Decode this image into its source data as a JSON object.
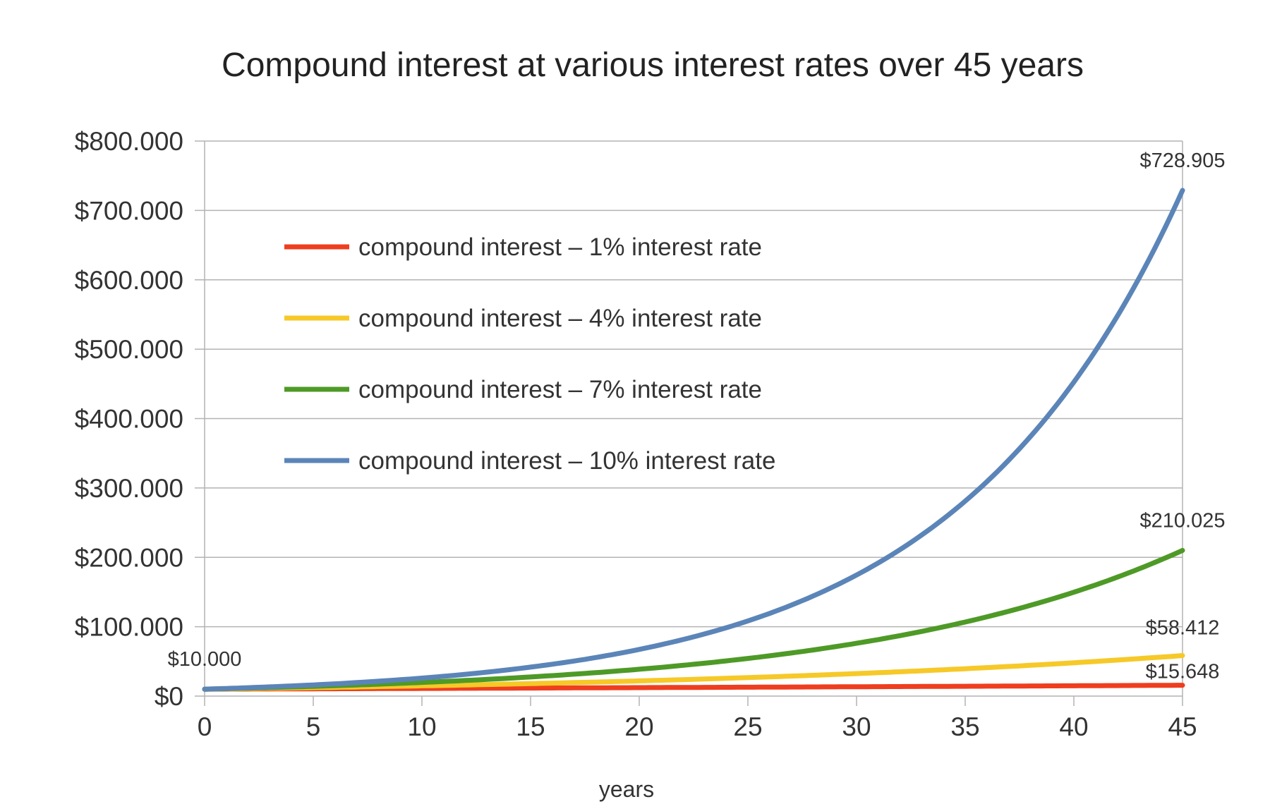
{
  "chart_data": {
    "type": "line",
    "title": "Compound interest at various interest rates over 45 years",
    "xlabel": "years",
    "ylabel": "",
    "xlim": [
      0,
      45
    ],
    "ylim": [
      0,
      800000
    ],
    "x_ticks": [
      0,
      5,
      10,
      15,
      20,
      25,
      30,
      35,
      40,
      45
    ],
    "x_tick_labels": [
      "0",
      "5",
      "10",
      "15",
      "20",
      "25",
      "30",
      "35",
      "40",
      "45"
    ],
    "y_ticks": [
      0,
      100000,
      200000,
      300000,
      400000,
      500000,
      600000,
      700000,
      800000
    ],
    "y_tick_labels": [
      "$0",
      "$100.000",
      "$200.000",
      "$300.000",
      "$400.000",
      "$500.000",
      "$600.000",
      "$700.000",
      "$800.000"
    ],
    "grid": true,
    "legend_position": "upper-left inside plot",
    "x": [
      0,
      5,
      10,
      15,
      20,
      25,
      30,
      35,
      40,
      45
    ],
    "series": [
      {
        "name": "compound interest – 1% interest rate",
        "color": "#ef3e1f",
        "values": [
          10000,
          10510,
          11046,
          11610,
          12202,
          12824,
          13478,
          14166,
          14889,
          15648
        ]
      },
      {
        "name": "compound interest – 4% interest rate",
        "color": "#f6c928",
        "values": [
          10000,
          12167,
          14802,
          18009,
          21911,
          26658,
          32434,
          39461,
          48010,
          58412
        ]
      },
      {
        "name": "compound interest – 7% interest rate",
        "color": "#4e9a27",
        "values": [
          10000,
          14026,
          19672,
          27590,
          38697,
          54274,
          76123,
          106766,
          149745,
          210025
        ]
      },
      {
        "name": "compound interest – 10% interest rate",
        "color": "#5b85b8",
        "values": [
          10000,
          16105,
          25937,
          41772,
          67275,
          108347,
          174494,
          281024,
          452593,
          728905
        ]
      }
    ],
    "annotations": [
      {
        "text": "$10.000",
        "x": 0,
        "y": 10000
      },
      {
        "text": "$728.905",
        "x": 45,
        "y": 728905
      },
      {
        "text": "$210.025",
        "x": 45,
        "y": 210025
      },
      {
        "text": "$58.412",
        "x": 45,
        "y": 58412
      },
      {
        "text": "$15.648",
        "x": 45,
        "y": 15648
      }
    ]
  }
}
